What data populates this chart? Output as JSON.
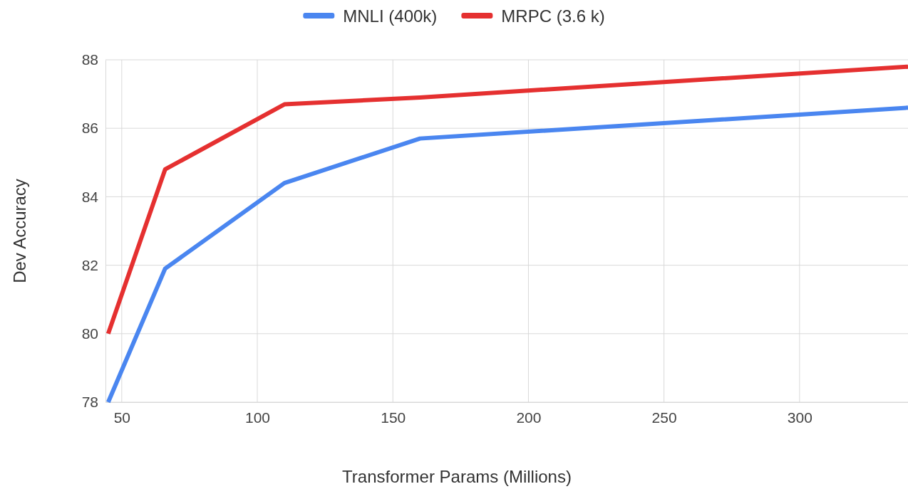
{
  "chart_data": {
    "type": "line",
    "xlabel": "Transformer Params (Millions)",
    "ylabel": "Dev Accuracy",
    "x": [
      45,
      66,
      110,
      160,
      340
    ],
    "series": [
      {
        "name": "MNLI (400k)",
        "color": "#4a86f0",
        "values": [
          78.0,
          81.9,
          84.4,
          85.7,
          86.6
        ]
      },
      {
        "name": "MRPC (3.6 k)",
        "color": "#e53030",
        "values": [
          80.0,
          84.8,
          86.7,
          86.9,
          87.8
        ]
      }
    ],
    "xlim": [
      44,
      340
    ],
    "xticks": [
      50,
      100,
      150,
      200,
      250,
      300
    ],
    "ylim": [
      78,
      88
    ],
    "yticks": [
      78,
      80,
      82,
      84,
      86,
      88
    ],
    "grid": true,
    "legend": "top",
    "marker": "none",
    "line_style": "solid"
  }
}
